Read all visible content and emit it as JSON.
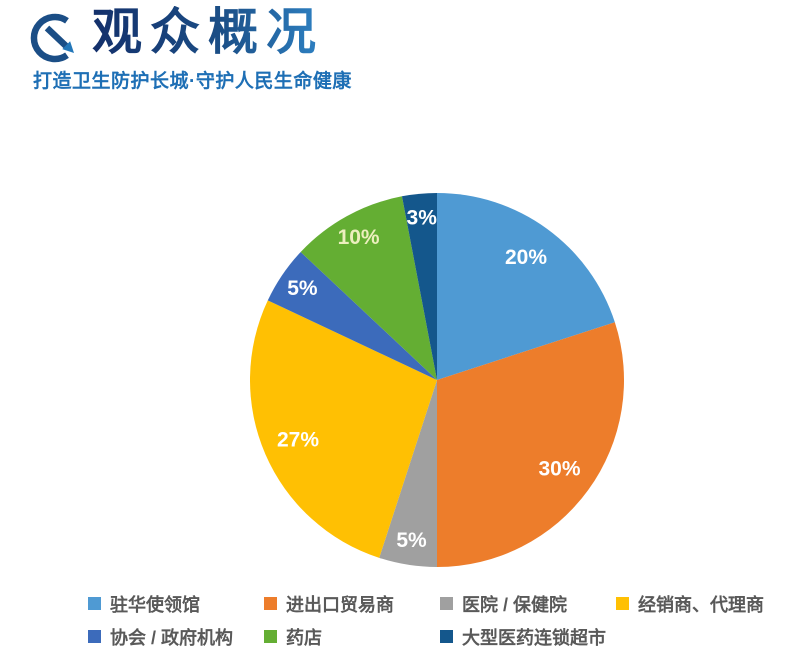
{
  "header": {
    "title": "观众概况",
    "subtitle": "打造卫生防护长城·守护人民生命健康",
    "logo_icon": "circle-arrow-icon",
    "title_gradient_start": "#14306B",
    "title_gradient_end": "#2E82C4",
    "subtitle_color": "#1E6FB5",
    "logo_color": "#1B4E86",
    "logo_arrowhead_color": "#2377B9"
  },
  "chart_data": {
    "type": "pie",
    "title": "",
    "categories": [
      "驻华使领馆",
      "进出口贸易商",
      "医院 / 保健院",
      "经销商、代理商",
      "协会 / 政府机构",
      "药店",
      "大型医药连锁超市"
    ],
    "values": [
      20,
      30,
      5,
      27,
      5,
      10,
      3
    ],
    "data_labels": [
      "20%",
      "30%",
      "5%",
      "27%",
      "5%",
      "10%",
      "3%"
    ],
    "colors": [
      "#4F9AD3",
      "#ED7D2B",
      "#A0A0A0",
      "#FFC003",
      "#3C6BBB",
      "#64AE33",
      "#14578C"
    ],
    "data_label_colors": [
      "#FFFFFF",
      "#FFFFFF",
      "#FFFFFF",
      "#FFFFFF",
      "#FFFFFF",
      "#ECEFBE",
      "#FFFFFF"
    ],
    "start_angle_deg": 0,
    "direction": "clockwise",
    "grid": false,
    "legend_position": "bottom",
    "legend_columns": 4,
    "legend_text_color": "#595959"
  }
}
